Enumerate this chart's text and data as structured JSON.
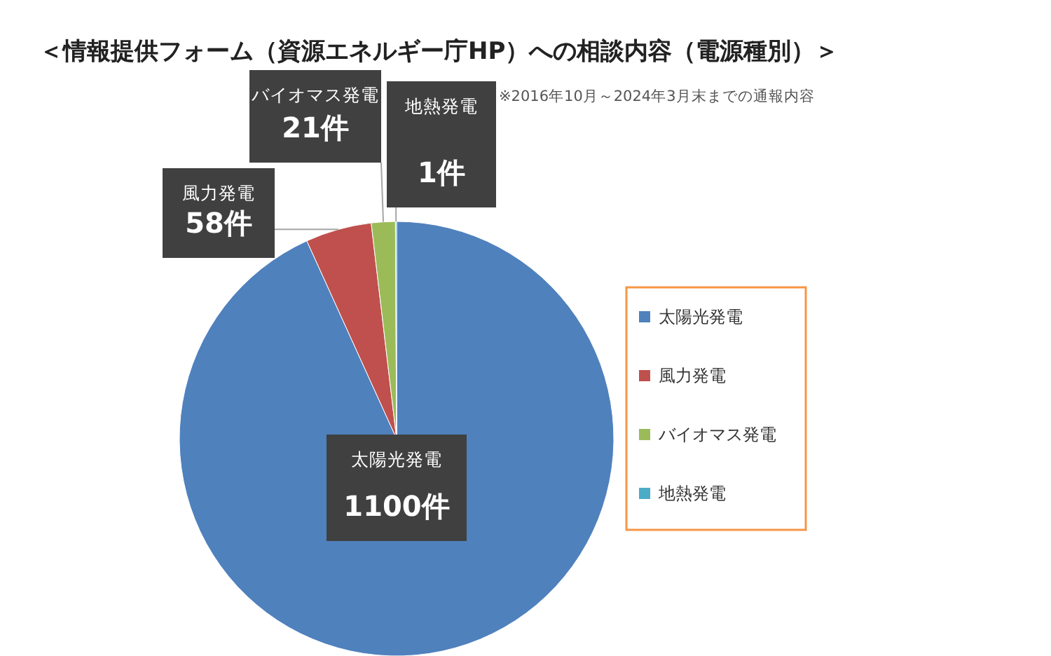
{
  "chart_data": {
    "type": "pie",
    "title": "＜情報提供フォーム（資源エネルギー庁HP）への相談内容（電源種別）＞",
    "annotations": [
      "※2016年10月～2024年3月末までの通報内容"
    ],
    "categories": [
      "太陽光発電",
      "風力発電",
      "バイオマス発電",
      "地熱発電"
    ],
    "values": [
      1100,
      58,
      21,
      1
    ],
    "colors": [
      "#4f81bd",
      "#c0504d",
      "#9bbb59",
      "#4bacc6"
    ],
    "value_labels": [
      "1100件",
      "58件",
      "21件",
      "1件"
    ],
    "legend": "right"
  }
}
